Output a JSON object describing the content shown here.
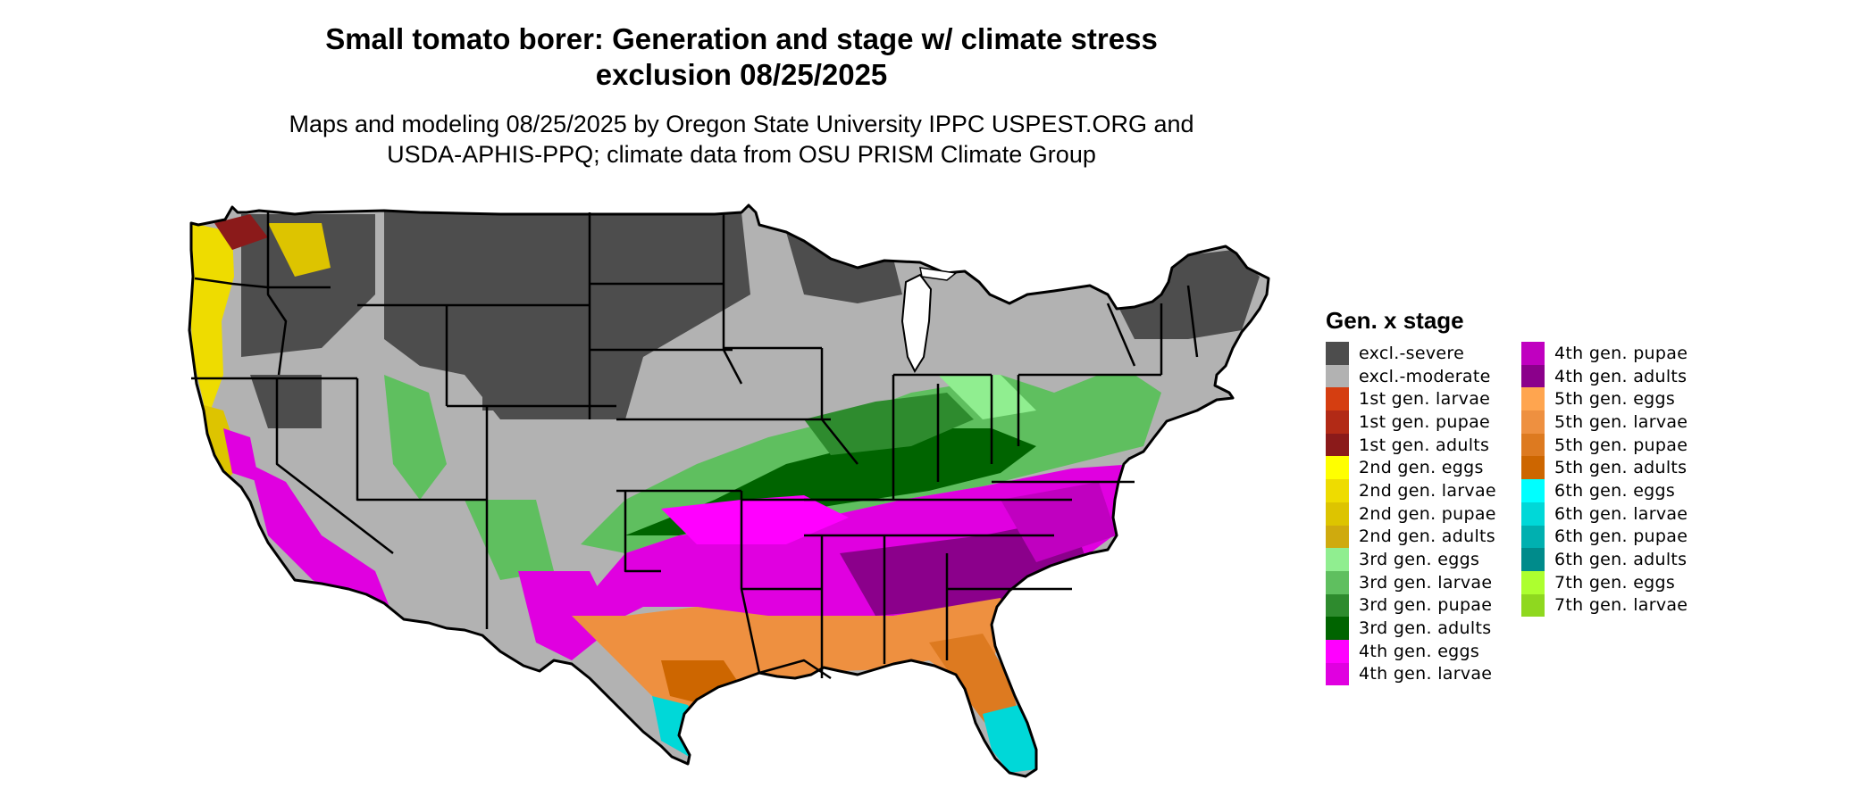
{
  "title_line1": "Small tomato borer: Generation and stage w/ climate stress",
  "title_line2": "exclusion 08/25/2025",
  "subtitle_line1": "Maps and modeling 08/25/2025 by Oregon State University IPPC USPEST.ORG and",
  "subtitle_line2": "USDA-APHIS-PPQ; climate data from OSU PRISM Climate Group",
  "legend": {
    "title": "Gen. x stage",
    "items": [
      {
        "label": "excl.-severe",
        "color": "#4d4d4d"
      },
      {
        "label": "excl.-moderate",
        "color": "#b2b2b2"
      },
      {
        "label": "1st gen. larvae",
        "color": "#d53e11"
      },
      {
        "label": "1st gen. pupae",
        "color": "#b22a16"
      },
      {
        "label": "1st gen. adults",
        "color": "#8b1a1a"
      },
      {
        "label": "2nd gen. eggs",
        "color": "#ffff00"
      },
      {
        "label": "2nd gen. larvae",
        "color": "#eedc00"
      },
      {
        "label": "2nd gen. pupae",
        "color": "#ddc400"
      },
      {
        "label": "2nd gen. adults",
        "color": "#cfaa0e"
      },
      {
        "label": "3rd gen. eggs",
        "color": "#90ee90"
      },
      {
        "label": "3rd gen. larvae",
        "color": "#5fbf5f"
      },
      {
        "label": "3rd gen. pupae",
        "color": "#2e8b2e"
      },
      {
        "label": "3rd gen. adults",
        "color": "#006400"
      },
      {
        "label": "4th gen. eggs",
        "color": "#ff00ff"
      },
      {
        "label": "4th gen. larvae",
        "color": "#e000e0"
      },
      {
        "label": "4th gen. pupae",
        "color": "#c000c0"
      },
      {
        "label": "4th gen. adults",
        "color": "#8b008b"
      },
      {
        "label": "5th gen. eggs",
        "color": "#ffa54f"
      },
      {
        "label": "5th gen. larvae",
        "color": "#ee9040"
      },
      {
        "label": "5th gen. pupae",
        "color": "#dd7a20"
      },
      {
        "label": "5th gen. adults",
        "color": "#cd6600"
      },
      {
        "label": "6th gen. eggs",
        "color": "#00ffff"
      },
      {
        "label": "6th gen. larvae",
        "color": "#00d8d8"
      },
      {
        "label": "6th gen. pupae",
        "color": "#00b0b0"
      },
      {
        "label": "6th gen. adults",
        "color": "#008b8b"
      },
      {
        "label": "7th gen. eggs",
        "color": "#adff2f"
      },
      {
        "label": "7th gen. larvae",
        "color": "#8fd81f"
      }
    ]
  }
}
